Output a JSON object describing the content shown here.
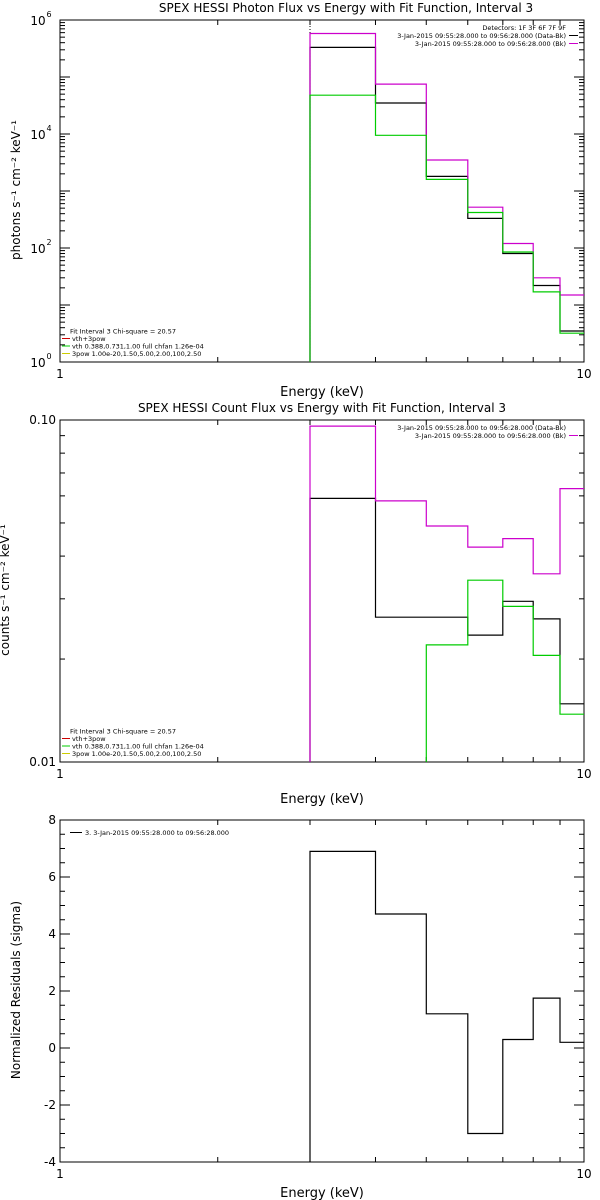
{
  "chart_data": [
    {
      "type": "line",
      "title": "SPEX HESSI Photon Flux vs Energy with Fit Function, Interval 3",
      "xlabel": "Energy (keV)",
      "ylabel": "photons s⁻¹ cm⁻² keV⁻¹",
      "xscale": "log",
      "yscale": "log",
      "xlim": [
        1,
        10
      ],
      "ylim": [
        1,
        1000000
      ],
      "x_tick_labels": [
        {
          "v": 1,
          "t": "1"
        },
        {
          "v": 10,
          "t": "10"
        }
      ],
      "y_tick_labels": [
        {
          "v": 1,
          "base": "10",
          "exp": "0"
        },
        {
          "v": 100,
          "base": "10",
          "exp": "2"
        },
        {
          "v": 10000,
          "base": "10",
          "exp": "4"
        },
        {
          "v": 1000000,
          "base": "10",
          "exp": "6"
        }
      ],
      "marker_line_x": 3.0,
      "header_lines": [
        {
          "text": "Detectors: 1F 3F 6F 7F 9F",
          "color": "#000000"
        },
        {
          "text": "3-Jan-2015 09:55:28.000 to 09:56:28.000 (Data-Bk)",
          "color": "#000000"
        },
        {
          "text": "3-Jan-2015 09:55:28.000 to 09:56:28.000 (Bk)",
          "color": "#cc00cc"
        }
      ],
      "fit_legend": [
        {
          "text": "Fit Interval 3   Chi-square = 20.57",
          "color": "#000000"
        },
        {
          "text": "vth+3pow",
          "color": "#cc0000"
        },
        {
          "text": "vth 0.388,0.731,1.00  full chfan 1.26e-04",
          "color": "#00cc00"
        },
        {
          "text": "3pow 1.00e-20,1.50,5.00,2.00,100,2.50",
          "color": "#cccc00"
        }
      ],
      "series": [
        {
          "name": "Data-Bk",
          "color": "#000000",
          "edges": [
            3.0,
            4.0,
            5.0,
            6.0,
            7.0,
            8.0,
            9.0,
            10.0
          ],
          "values": [
            330000,
            35000,
            1800,
            330,
            80,
            22,
            3.5
          ]
        },
        {
          "name": "Bk",
          "color": "#cc00cc",
          "edges": [
            3.0,
            4.0,
            5.0,
            6.0,
            7.0,
            8.0,
            9.0,
            10.0
          ],
          "values": [
            580000,
            75000,
            3500,
            520,
            120,
            30,
            15
          ]
        },
        {
          "name": "vth 0.388,0.731,1.00  full chfan 1.26e-04",
          "color": "#00cc00",
          "edges": [
            3.0,
            4.0,
            5.0,
            6.0,
            7.0,
            8.0,
            9.0,
            10.0
          ],
          "values": [
            48000,
            9500,
            1600,
            420,
            85,
            17,
            3.2
          ]
        }
      ]
    },
    {
      "type": "line",
      "title": "SPEX HESSI Count Flux vs Energy with Fit Function, Interval 3",
      "xlabel": "Energy (keV)",
      "ylabel": "counts s⁻¹ cm⁻² keV⁻¹",
      "xscale": "log",
      "yscale": "log",
      "xlim": [
        1,
        10
      ],
      "ylim": [
        0.01,
        0.1
      ],
      "x_tick_labels": [
        {
          "v": 1,
          "t": "1"
        },
        {
          "v": 10,
          "t": "10"
        }
      ],
      "y_tick_labels": [
        {
          "v": 0.01,
          "t": "0.01"
        },
        {
          "v": 0.1,
          "t": "0.10"
        }
      ],
      "header_lines": [
        {
          "text": "3-Jan-2015 09:55:28.000 to 09:56:28.000 (Data-Bk)",
          "color": "#000000"
        },
        {
          "text": "3-Jan-2015 09:55:28.000 to 09:56:28.000 (Bk)",
          "color": "#cc00cc"
        }
      ],
      "fit_legend": [
        {
          "text": "Fit Interval 3   Chi-square = 20.57",
          "color": "#000000"
        },
        {
          "text": "vth+3pow",
          "color": "#cc0000"
        },
        {
          "text": "vth 0.388,0.731,1.00  full chfan 1.26e-04",
          "color": "#00cc00"
        },
        {
          "text": "3pow 1.00e-20,1.50,5.00,2.00,100,2.50",
          "color": "#cccc00"
        }
      ],
      "series": [
        {
          "name": "Data-Bk",
          "color": "#000000",
          "edges": [
            3.0,
            4.0,
            6.0,
            7.0,
            8.0,
            9.0,
            10.0
          ],
          "values": [
            0.059,
            0.0265,
            0.0235,
            0.0295,
            0.0262,
            0.0148
          ]
        },
        {
          "name": "Bk",
          "color": "#cc00cc",
          "edges": [
            3.0,
            4.0,
            5.0,
            6.0,
            7.0,
            8.0,
            9.0,
            10.0
          ],
          "values": [
            0.096,
            0.058,
            0.049,
            0.0425,
            0.045,
            0.0355,
            0.063
          ]
        },
        {
          "name": "vth 0.388,0.731,1.00  full chfan 1.26e-04",
          "color": "#00cc00",
          "edges": [
            5.0,
            6.0,
            7.0,
            8.0,
            9.0,
            10.0
          ],
          "values": [
            0.022,
            0.034,
            0.0285,
            0.0205,
            0.0138
          ]
        }
      ]
    },
    {
      "type": "line",
      "title": "",
      "xlabel": "Energy (keV)",
      "ylabel": "Normalized Residuals (sigma)",
      "xscale": "log",
      "yscale": "linear",
      "xlim": [
        1,
        10
      ],
      "ylim": [
        -4,
        8
      ],
      "x_tick_labels": [
        {
          "v": 1,
          "t": "1"
        },
        {
          "v": 10,
          "t": "10"
        }
      ],
      "y_tick_labels": [
        {
          "v": -4,
          "t": "-4"
        },
        {
          "v": -2,
          "t": "-2"
        },
        {
          "v": 0,
          "t": "0"
        },
        {
          "v": 2,
          "t": "2"
        },
        {
          "v": 4,
          "t": "4"
        },
        {
          "v": 6,
          "t": "6"
        },
        {
          "v": 8,
          "t": "8"
        }
      ],
      "legend": [
        {
          "text": "3.  3-Jan-2015 09:55:28.000 to 09:56:28.000",
          "color": "#000000"
        }
      ],
      "series": [
        {
          "name": "3.  3-Jan-2015 09:55:28.000 to 09:56:28.000",
          "color": "#000000",
          "edges": [
            3.0,
            4.0,
            5.0,
            6.0,
            7.0,
            8.0,
            9.0,
            10.0
          ],
          "values": [
            6.9,
            4.7,
            1.2,
            -3.0,
            0.3,
            1.75,
            0.2
          ],
          "drop_to_min_at_start": true
        }
      ]
    }
  ]
}
